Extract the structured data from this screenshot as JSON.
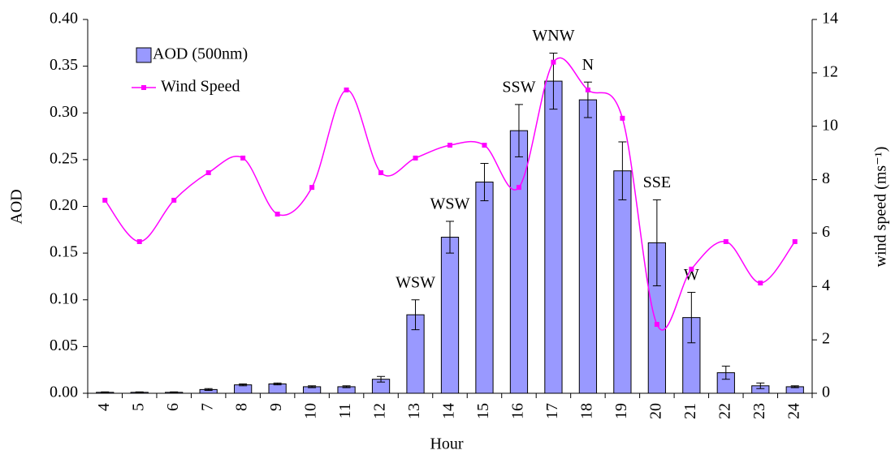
{
  "chart_data": {
    "type": "bar-line",
    "x_label": "Hour",
    "y_label": "AOD",
    "y2_label": "wind speed (ms⁻¹)",
    "categories": [
      "4",
      "5",
      "6",
      "7",
      "8",
      "9",
      "10",
      "11",
      "12",
      "13",
      "14",
      "15",
      "16",
      "17",
      "18",
      "19",
      "20",
      "21",
      "22",
      "23",
      "24"
    ],
    "series": [
      {
        "name": "AOD (500nm)",
        "type": "bar",
        "color": "#9999ff",
        "values": [
          0.001,
          0.001,
          0.001,
          0.004,
          0.009,
          0.01,
          0.007,
          0.007,
          0.015,
          0.084,
          0.167,
          0.226,
          0.281,
          0.334,
          0.314,
          0.238,
          0.161,
          0.081,
          0.022,
          0.008,
          0.007
        ],
        "errors": [
          0.0005,
          0.0005,
          0.0005,
          0.001,
          0.001,
          0.001,
          0.001,
          0.001,
          0.003,
          0.016,
          0.017,
          0.02,
          0.028,
          0.03,
          0.019,
          0.031,
          0.046,
          0.027,
          0.007,
          0.003,
          0.001
        ]
      },
      {
        "name": "Wind Speed",
        "type": "line",
        "axis": "y2",
        "color": "#ff00ff",
        "values": [
          7.23,
          5.68,
          7.23,
          8.26,
          8.81,
          6.71,
          7.71,
          11.36,
          8.26,
          8.81,
          9.29,
          9.29,
          7.71,
          12.4,
          11.36,
          10.3,
          2.58,
          4.65,
          5.68,
          4.13,
          5.68
        ]
      }
    ],
    "annotations": [
      null,
      null,
      null,
      null,
      null,
      null,
      null,
      null,
      null,
      "WSW",
      "WSW",
      null,
      "SSW",
      "WNW",
      "N",
      null,
      "SSE",
      "W",
      null,
      null,
      null
    ],
    "ylim": [
      0,
      0.4
    ],
    "yticks": [
      {
        "value": 0,
        "label": "0.00"
      },
      {
        "value": 0.05,
        "label": "0.05"
      },
      {
        "value": 0.1,
        "label": "0.10"
      },
      {
        "value": 0.15,
        "label": "0.15"
      },
      {
        "value": 0.2,
        "label": "0.20"
      },
      {
        "value": 0.25,
        "label": "0.25"
      },
      {
        "value": 0.3,
        "label": "0.30"
      },
      {
        "value": 0.35,
        "label": "0.35"
      },
      {
        "value": 0.4,
        "label": "0.40"
      }
    ],
    "y2lim": [
      0,
      14
    ],
    "y2ticks": [
      0,
      2,
      4,
      6,
      8,
      10,
      12,
      14
    ],
    "grid": false,
    "legend": "top-left"
  }
}
